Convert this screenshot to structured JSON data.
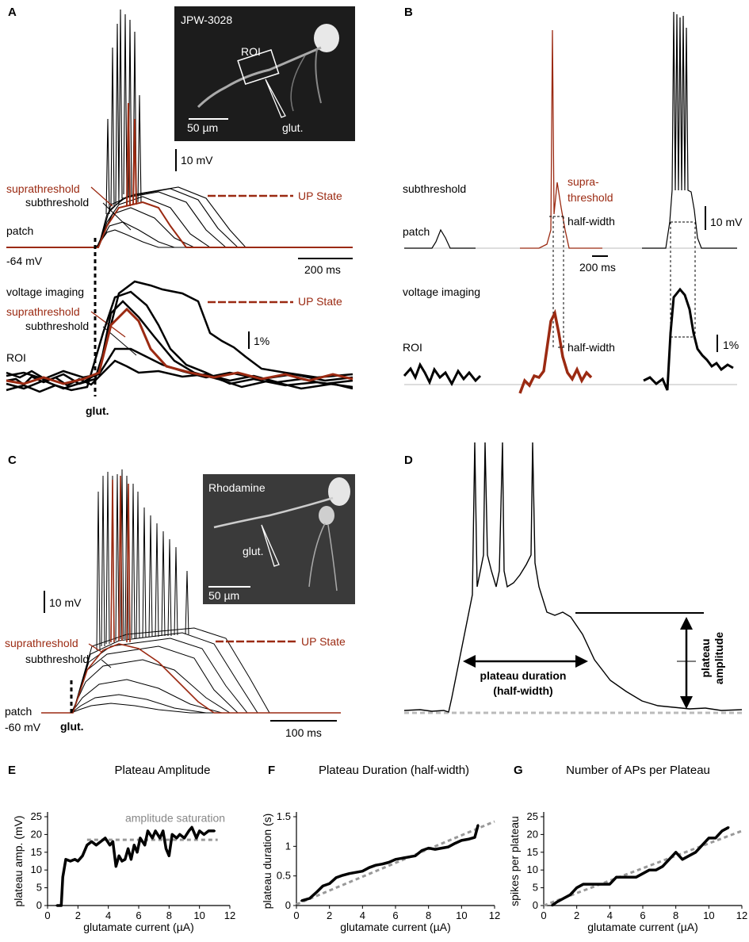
{
  "panels": {
    "A": {
      "letter": "A",
      "inset_title": "JPW-3028",
      "inset_roi": "ROI",
      "inset_scale": "50 µm",
      "inset_glut": "glut.",
      "scale_mv": "10 mV",
      "suprathreshold": "suprathreshold",
      "subthreshold": "subthreshold",
      "up_state": "UP State",
      "patch": "patch",
      "rest": "-64 mV",
      "scale_ms": "200 ms",
      "voltage_imaging": "voltage imaging",
      "suprathreshold2": "suprathreshold",
      "subthreshold2": "subthreshold",
      "up_state2": "UP State",
      "roi": "ROI",
      "scale_pct": "1%",
      "glut": "glut."
    },
    "B": {
      "letter": "B",
      "subthreshold": "subthreshold",
      "supra1": "supra-",
      "supra2": "threshold",
      "half_width": "half-width",
      "patch": "patch",
      "scale_mv": "10 mV",
      "scale_ms": "200 ms",
      "voltage_imaging": "voltage imaging",
      "roi": "ROI",
      "half_width2": "half-width",
      "scale_pct": "1%"
    },
    "C": {
      "letter": "C",
      "inset_title": "Rhodamine",
      "inset_glut": "glut.",
      "inset_scale": "50 µm",
      "scale_mv": "10 mV",
      "suprathreshold": "suprathreshold",
      "subthreshold": "subthreshold",
      "up_state": "UP State",
      "patch": "patch",
      "rest": "-60 mV",
      "glut": "glut.",
      "scale_ms": "100 ms"
    },
    "D": {
      "letter": "D",
      "duration1": "plateau duration",
      "duration2": "(half-width)",
      "amp1": "plateau",
      "amp2": "amplitude"
    }
  },
  "chart_data": [
    {
      "panel": "E",
      "type": "line",
      "title": "Plateau Amplitude",
      "xlabel": "glutamate current (µA)",
      "ylabel": "plateau amp. (mV)",
      "xlim": [
        0,
        12
      ],
      "ylim": [
        0,
        25
      ],
      "xticks": [
        "0",
        "2",
        "4",
        "6",
        "8",
        "10",
        "12"
      ],
      "yticks": [
        "0",
        "5",
        "10",
        "15",
        "20",
        "25"
      ],
      "annotation": "amplitude saturation",
      "saturation_line": {
        "x": [
          2.6,
          11.2
        ],
        "y": [
          18.5,
          18.5
        ]
      },
      "series": [
        {
          "values": [
            [
              0.6,
              0
            ],
            [
              0.9,
              0
            ],
            [
              1.0,
              8
            ],
            [
              1.2,
              13
            ],
            [
              1.5,
              12.5
            ],
            [
              1.8,
              13
            ],
            [
              2.0,
              12.5
            ],
            [
              2.3,
              14
            ],
            [
              2.6,
              17
            ],
            [
              2.9,
              18
            ],
            [
              3.2,
              17
            ],
            [
              3.5,
              18
            ],
            [
              3.8,
              19
            ],
            [
              4.1,
              17
            ],
            [
              4.3,
              18
            ],
            [
              4.5,
              11
            ],
            [
              4.7,
              14
            ],
            [
              4.9,
              12.5
            ],
            [
              5.1,
              13
            ],
            [
              5.3,
              16
            ],
            [
              5.5,
              13
            ],
            [
              5.7,
              17
            ],
            [
              5.9,
              15
            ],
            [
              6.1,
              19
            ],
            [
              6.4,
              17
            ],
            [
              6.6,
              21
            ],
            [
              6.9,
              19
            ],
            [
              7.1,
              21
            ],
            [
              7.4,
              19
            ],
            [
              7.6,
              21
            ],
            [
              7.8,
              16
            ],
            [
              8.0,
              14
            ],
            [
              8.2,
              20
            ],
            [
              8.5,
              19
            ],
            [
              8.7,
              20
            ],
            [
              9.0,
              19
            ],
            [
              9.3,
              21
            ],
            [
              9.5,
              22
            ],
            [
              9.8,
              19
            ],
            [
              10.0,
              21
            ],
            [
              10.3,
              20
            ],
            [
              10.6,
              21
            ],
            [
              11.0,
              21
            ]
          ]
        }
      ]
    },
    {
      "panel": "F",
      "type": "line",
      "title": "Plateau Duration (half-width)",
      "xlabel": "glutamate current (µA)",
      "ylabel": "plateau duration (s)",
      "xlim": [
        0,
        12
      ],
      "ylim": [
        0,
        1.5
      ],
      "xticks": [
        "0",
        "2",
        "4",
        "6",
        "8",
        "10",
        "12"
      ],
      "yticks": [
        "0",
        "0.5",
        "1",
        "1.5"
      ],
      "fit_line": {
        "x": [
          0,
          12
        ],
        "y": [
          0.02,
          1.42
        ]
      },
      "series": [
        {
          "values": [
            [
              0.3,
              0.08
            ],
            [
              0.8,
              0.12
            ],
            [
              1.2,
              0.22
            ],
            [
              1.6,
              0.33
            ],
            [
              2.0,
              0.37
            ],
            [
              2.4,
              0.47
            ],
            [
              2.8,
              0.51
            ],
            [
              3.2,
              0.54
            ],
            [
              3.6,
              0.56
            ],
            [
              4.0,
              0.58
            ],
            [
              4.4,
              0.64
            ],
            [
              4.8,
              0.68
            ],
            [
              5.2,
              0.7
            ],
            [
              5.6,
              0.73
            ],
            [
              6.0,
              0.78
            ],
            [
              6.4,
              0.8
            ],
            [
              6.8,
              0.82
            ],
            [
              7.2,
              0.84
            ],
            [
              7.6,
              0.93
            ],
            [
              8.0,
              0.97
            ],
            [
              8.4,
              0.95
            ],
            [
              8.8,
              0.97
            ],
            [
              9.2,
              0.99
            ],
            [
              9.6,
              1.05
            ],
            [
              10.0,
              1.1
            ],
            [
              10.4,
              1.12
            ],
            [
              10.8,
              1.15
            ],
            [
              11.0,
              1.36
            ]
          ]
        }
      ]
    },
    {
      "panel": "G",
      "type": "line",
      "title": "Number of APs per Plateau",
      "xlabel": "glutamate current (µA)",
      "ylabel": "spikes per plateau",
      "xlim": [
        0,
        12
      ],
      "ylim": [
        0,
        25
      ],
      "xticks": [
        "0",
        "2",
        "4",
        "6",
        "8",
        "10",
        "12"
      ],
      "yticks": [
        "0",
        "5",
        "10",
        "15",
        "20",
        "25"
      ],
      "fit_line": {
        "x": [
          0,
          12
        ],
        "y": [
          0,
          21
        ]
      },
      "series": [
        {
          "values": [
            [
              0.5,
              0
            ],
            [
              0.8,
              1
            ],
            [
              1.2,
              2
            ],
            [
              1.6,
              3
            ],
            [
              2.0,
              5
            ],
            [
              2.4,
              6
            ],
            [
              2.8,
              6
            ],
            [
              3.2,
              6
            ],
            [
              3.6,
              6
            ],
            [
              4.0,
              6
            ],
            [
              4.4,
              8
            ],
            [
              4.8,
              8
            ],
            [
              5.2,
              8
            ],
            [
              5.6,
              8
            ],
            [
              6.0,
              9
            ],
            [
              6.4,
              10
            ],
            [
              6.8,
              10
            ],
            [
              7.2,
              11
            ],
            [
              7.6,
              13
            ],
            [
              8.0,
              15
            ],
            [
              8.4,
              13
            ],
            [
              8.8,
              14
            ],
            [
              9.2,
              15
            ],
            [
              9.6,
              17
            ],
            [
              10.0,
              19
            ],
            [
              10.4,
              19
            ],
            [
              10.8,
              21
            ],
            [
              11.2,
              22
            ]
          ]
        }
      ]
    }
  ]
}
